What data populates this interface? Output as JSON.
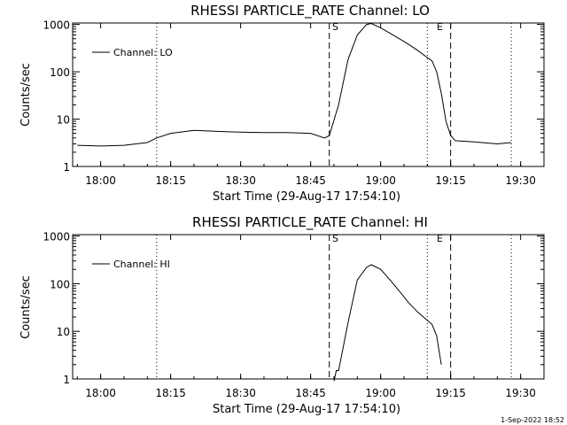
{
  "charts": [
    {
      "title": "RHESSI PARTICLE_RATE Channel: LO",
      "ylabel": "Counts/sec",
      "xlabel": "Start Time (29-Aug-17 17:54:10)",
      "legend": "Channel: LO"
    },
    {
      "title": "RHESSI PARTICLE_RATE Channel: HI",
      "ylabel": "Counts/sec",
      "xlabel": "Start Time (29-Aug-17 17:54:10)",
      "legend": "Channel: HI"
    }
  ],
  "xticks": [
    "18:00",
    "18:15",
    "18:30",
    "18:45",
    "19:00",
    "19:15",
    "19:30"
  ],
  "yticks": [
    "1",
    "10",
    "100",
    "1000"
  ],
  "markers": {
    "start": "S",
    "end": "E"
  },
  "timestamp": "1-Sep-2022 18:52",
  "chart_data": [
    {
      "type": "line",
      "title": "RHESSI PARTICLE_RATE Channel: LO",
      "xlabel": "Start Time (29-Aug-17 17:54:10)",
      "ylabel": "Counts/sec",
      "yscale": "log",
      "ylim": [
        1,
        1000
      ],
      "xlim": [
        "17:54:10",
        "19:35:30"
      ],
      "x_ticks": [
        "18:00",
        "18:15",
        "18:30",
        "18:45",
        "19:00",
        "19:15",
        "19:30"
      ],
      "legend": "top-left",
      "vlines_dotted": [
        "18:12",
        "19:10",
        "19:28"
      ],
      "vlines_dashed": [
        "18:49",
        "19:15"
      ],
      "annotations": [
        {
          "text": "S",
          "x": "18:49"
        },
        {
          "text": "E",
          "x": "19:10"
        }
      ],
      "series": [
        {
          "name": "Channel: LO",
          "x": [
            "17:55",
            "18:00",
            "18:05",
            "18:10",
            "18:12",
            "18:15",
            "18:20",
            "18:25",
            "18:30",
            "18:35",
            "18:40",
            "18:45",
            "18:48",
            "18:49",
            "18:51",
            "18:53",
            "18:55",
            "18:57",
            "18:58",
            "19:00",
            "19:02",
            "19:04",
            "19:06",
            "19:08",
            "19:10",
            "19:11",
            "19:12",
            "19:13",
            "19:14",
            "19:15",
            "19:16",
            "19:20",
            "19:25",
            "19:28"
          ],
          "values": [
            2.8,
            2.7,
            2.8,
            3.2,
            4.0,
            5.0,
            5.8,
            5.5,
            5.3,
            5.2,
            5.2,
            5.0,
            4.0,
            4.5,
            20,
            180,
            600,
            1000,
            1050,
            850,
            650,
            500,
            380,
            280,
            200,
            170,
            100,
            35,
            9,
            4.5,
            3.5,
            3.3,
            3.0,
            3.2
          ]
        }
      ]
    },
    {
      "type": "line",
      "title": "RHESSI PARTICLE_RATE Channel: HI",
      "xlabel": "Start Time (29-Aug-17 17:54:10)",
      "ylabel": "Counts/sec",
      "yscale": "log",
      "ylim": [
        1,
        1000
      ],
      "xlim": [
        "17:54:10",
        "19:35:30"
      ],
      "x_ticks": [
        "18:00",
        "18:15",
        "18:30",
        "18:45",
        "19:00",
        "19:15",
        "19:30"
      ],
      "legend": "top-left",
      "vlines_dotted": [
        "18:12",
        "19:10",
        "19:28"
      ],
      "vlines_dashed": [
        "18:49",
        "19:15"
      ],
      "annotations": [
        {
          "text": "S",
          "x": "18:49"
        },
        {
          "text": "E",
          "x": "19:10"
        }
      ],
      "series": [
        {
          "name": "Channel: HI",
          "x": [
            "18:50",
            "18:50.5",
            "18:51",
            "18:53",
            "18:55",
            "18:57",
            "18:58",
            "19:00",
            "19:02",
            "19:04",
            "19:06",
            "19:08",
            "19:10",
            "19:11",
            "19:12",
            "19:13"
          ],
          "values": [
            0.9,
            1.5,
            1.5,
            15,
            120,
            220,
            250,
            200,
            120,
            70,
            40,
            25,
            17,
            14,
            8,
            2
          ]
        }
      ]
    }
  ]
}
